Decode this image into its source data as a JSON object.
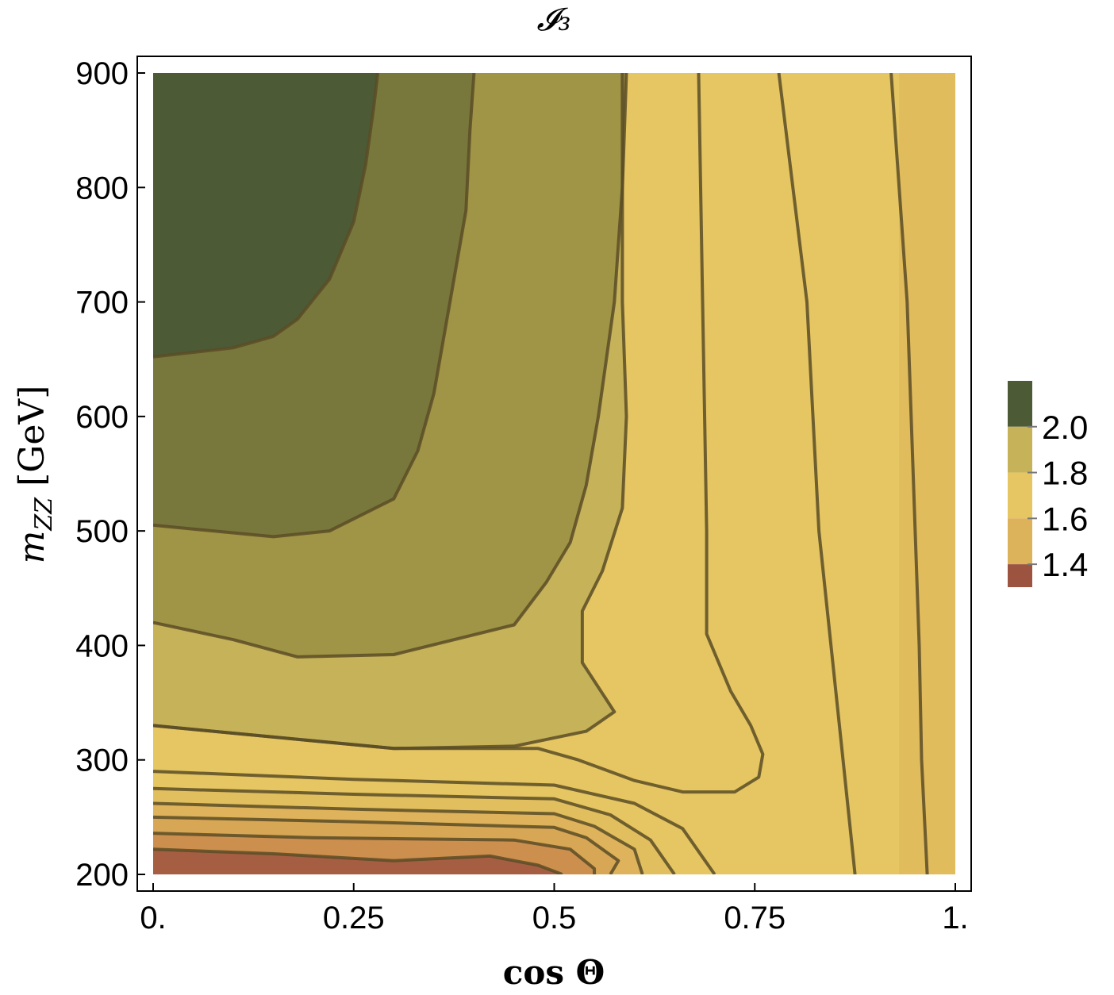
{
  "chart_data": {
    "type": "contour",
    "title": "𝓘₃",
    "xlabel": "cos Θ",
    "ylabel": "m_ZZ [GeV]",
    "ylabel_parts": {
      "symbol": "m",
      "subscript": "ZZ",
      "unit": "[GeV]"
    },
    "xlim": [
      0,
      1
    ],
    "ylim": [
      200,
      900
    ],
    "x_ticks": [
      {
        "value": 0,
        "label": "0."
      },
      {
        "value": 0.25,
        "label": "0.25"
      },
      {
        "value": 0.5,
        "label": "0.5"
      },
      {
        "value": 0.75,
        "label": "0.75"
      },
      {
        "value": 1,
        "label": "1."
      }
    ],
    "y_ticks": [
      {
        "value": 200,
        "label": "200"
      },
      {
        "value": 300,
        "label": "300"
      },
      {
        "value": 400,
        "label": "400"
      },
      {
        "value": 500,
        "label": "500"
      },
      {
        "value": 600,
        "label": "600"
      },
      {
        "value": 700,
        "label": "700"
      },
      {
        "value": 800,
        "label": "800"
      },
      {
        "value": 900,
        "label": "900"
      }
    ],
    "colorbar": {
      "range": [
        1.3,
        2.2
      ],
      "tick_labels": [
        {
          "value": 2.0,
          "label": "2.0"
        },
        {
          "value": 1.8,
          "label": "1.8"
        },
        {
          "value": 1.6,
          "label": "1.6"
        },
        {
          "value": 1.4,
          "label": "1.4"
        }
      ],
      "bands": [
        {
          "from": 2.0,
          "to": 2.2,
          "color": "#4c5a36"
        },
        {
          "from": 1.8,
          "to": 2.0,
          "color": "#c6b259"
        },
        {
          "from": 1.6,
          "to": 1.8,
          "color": "#e5c662"
        },
        {
          "from": 1.4,
          "to": 1.6,
          "color": "#dcb25a"
        },
        {
          "from": 1.3,
          "to": 1.4,
          "color": "#9c5440"
        }
      ]
    },
    "regions": [
      {
        "name": "band-right-edge",
        "color": "#e0bc5c",
        "points": [
          [
            0.93,
            200
          ],
          [
            0.93,
            900
          ],
          [
            1,
            900
          ],
          [
            1,
            200
          ]
        ]
      },
      {
        "name": "band-right-mid",
        "color": "#e5c662",
        "points": [
          [
            0,
            200
          ],
          [
            0,
            330
          ],
          [
            0.35,
            320
          ],
          [
            0.5,
            310
          ],
          [
            0.575,
            290
          ],
          [
            0.66,
            270
          ],
          [
            0.72,
            262
          ],
          [
            0.76,
            250
          ],
          [
            0.735,
            220
          ],
          [
            0.7,
            200
          ]
        ]
      },
      {
        "name": "band-ylw-upper",
        "color": "#c6b259",
        "points": [
          [
            0,
            330
          ],
          [
            0.15,
            320
          ],
          [
            0.3,
            310
          ],
          [
            0.45,
            312
          ],
          [
            0.54,
            325
          ],
          [
            0.575,
            342
          ],
          [
            0.535,
            385
          ],
          [
            0.535,
            430
          ],
          [
            0.56,
            465
          ],
          [
            0.585,
            520
          ],
          [
            0.59,
            600
          ],
          [
            0.585,
            700
          ],
          [
            0.585,
            900
          ],
          [
            0,
            900
          ]
        ]
      },
      {
        "name": "band-olive-light",
        "color": "#a09446",
        "points": [
          [
            0,
            420
          ],
          [
            0.1,
            405
          ],
          [
            0.18,
            390
          ],
          [
            0.3,
            392
          ],
          [
            0.45,
            418
          ],
          [
            0.49,
            455
          ],
          [
            0.52,
            490
          ],
          [
            0.54,
            540
          ],
          [
            0.555,
            600
          ],
          [
            0.575,
            700
          ],
          [
            0.585,
            800
          ],
          [
            0.59,
            900
          ],
          [
            0,
            900
          ]
        ]
      },
      {
        "name": "band-olive-mid",
        "color": "#78783c",
        "points": [
          [
            0,
            505
          ],
          [
            0.15,
            495
          ],
          [
            0.22,
            500
          ],
          [
            0.3,
            528
          ],
          [
            0.33,
            570
          ],
          [
            0.35,
            620
          ],
          [
            0.37,
            700
          ],
          [
            0.39,
            780
          ],
          [
            0.395,
            850
          ],
          [
            0.4,
            900
          ],
          [
            0,
            900
          ]
        ]
      },
      {
        "name": "band-dark-olive",
        "color": "#4c5a36",
        "points": [
          [
            0,
            652
          ],
          [
            0.1,
            660
          ],
          [
            0.15,
            670
          ],
          [
            0.18,
            685
          ],
          [
            0.22,
            720
          ],
          [
            0.25,
            770
          ],
          [
            0.265,
            820
          ],
          [
            0.275,
            870
          ],
          [
            0.28,
            900
          ],
          [
            0,
            900
          ]
        ]
      },
      {
        "name": "band-bottom-1",
        "color": "#e5c662",
        "points": [
          [
            0,
            200
          ],
          [
            0,
            290
          ],
          [
            0.25,
            283
          ],
          [
            0.5,
            278
          ],
          [
            0.6,
            262
          ],
          [
            0.66,
            240
          ],
          [
            0.7,
            200
          ]
        ]
      },
      {
        "name": "band-bottom-2",
        "color": "#e2bf5e",
        "points": [
          [
            0,
            200
          ],
          [
            0,
            275
          ],
          [
            0.25,
            270
          ],
          [
            0.5,
            266
          ],
          [
            0.57,
            252
          ],
          [
            0.62,
            230
          ],
          [
            0.65,
            200
          ]
        ]
      },
      {
        "name": "band-bottom-3",
        "color": "#deb35b",
        "points": [
          [
            0,
            200
          ],
          [
            0,
            262
          ],
          [
            0.25,
            257
          ],
          [
            0.5,
            253
          ],
          [
            0.55,
            242
          ],
          [
            0.6,
            222
          ],
          [
            0.61,
            200
          ]
        ]
      },
      {
        "name": "band-bottom-4",
        "color": "#d8a755",
        "points": [
          [
            0,
            200
          ],
          [
            0,
            250
          ],
          [
            0.25,
            246
          ],
          [
            0.5,
            241
          ],
          [
            0.54,
            232
          ],
          [
            0.58,
            212
          ],
          [
            0.57,
            200
          ]
        ]
      },
      {
        "name": "band-bottom-5",
        "color": "#cc8f4e",
        "points": [
          [
            0,
            200
          ],
          [
            0,
            236
          ],
          [
            0.2,
            232
          ],
          [
            0.45,
            230
          ],
          [
            0.52,
            222
          ],
          [
            0.55,
            205
          ],
          [
            0.55,
            200
          ]
        ]
      },
      {
        "name": "band-bottom-6",
        "color": "#a65e42",
        "points": [
          [
            0,
            200
          ],
          [
            0,
            222
          ],
          [
            0.15,
            218
          ],
          [
            0.3,
            212
          ],
          [
            0.42,
            216
          ],
          [
            0.48,
            208
          ],
          [
            0.51,
            200
          ]
        ]
      }
    ],
    "contours": [
      [
        [
          0,
          652
        ],
        [
          0.1,
          660
        ],
        [
          0.15,
          670
        ],
        [
          0.18,
          685
        ],
        [
          0.22,
          720
        ],
        [
          0.25,
          770
        ],
        [
          0.265,
          820
        ],
        [
          0.275,
          870
        ],
        [
          0.28,
          900
        ]
      ],
      [
        [
          0,
          505
        ],
        [
          0.15,
          495
        ],
        [
          0.22,
          500
        ],
        [
          0.3,
          528
        ],
        [
          0.33,
          570
        ],
        [
          0.35,
          620
        ],
        [
          0.37,
          700
        ],
        [
          0.39,
          780
        ],
        [
          0.395,
          850
        ],
        [
          0.4,
          900
        ]
      ],
      [
        [
          0,
          420
        ],
        [
          0.1,
          405
        ],
        [
          0.18,
          390
        ],
        [
          0.3,
          392
        ],
        [
          0.45,
          418
        ],
        [
          0.49,
          455
        ],
        [
          0.52,
          490
        ],
        [
          0.54,
          540
        ],
        [
          0.555,
          600
        ],
        [
          0.575,
          700
        ],
        [
          0.585,
          800
        ],
        [
          0.59,
          900
        ]
      ],
      [
        [
          0,
          330
        ],
        [
          0.15,
          320
        ],
        [
          0.3,
          310
        ],
        [
          0.45,
          312
        ],
        [
          0.54,
          325
        ],
        [
          0.575,
          342
        ],
        [
          0.535,
          385
        ],
        [
          0.535,
          430
        ],
        [
          0.56,
          465
        ],
        [
          0.585,
          520
        ],
        [
          0.59,
          600
        ],
        [
          0.585,
          700
        ],
        [
          0.585,
          900
        ]
      ],
      [
        [
          0,
          290
        ],
        [
          0.25,
          283
        ],
        [
          0.5,
          278
        ],
        [
          0.6,
          262
        ],
        [
          0.66,
          240
        ],
        [
          0.7,
          200
        ]
      ],
      [
        [
          0,
          275
        ],
        [
          0.25,
          270
        ],
        [
          0.5,
          266
        ],
        [
          0.57,
          252
        ],
        [
          0.62,
          230
        ],
        [
          0.65,
          200
        ]
      ],
      [
        [
          0,
          262
        ],
        [
          0.25,
          257
        ],
        [
          0.5,
          253
        ],
        [
          0.55,
          242
        ],
        [
          0.6,
          222
        ],
        [
          0.61,
          200
        ]
      ],
      [
        [
          0,
          250
        ],
        [
          0.25,
          246
        ],
        [
          0.5,
          241
        ],
        [
          0.54,
          232
        ],
        [
          0.58,
          212
        ],
        [
          0.57,
          200
        ]
      ],
      [
        [
          0,
          236
        ],
        [
          0.2,
          232
        ],
        [
          0.45,
          230
        ],
        [
          0.52,
          222
        ],
        [
          0.55,
          205
        ],
        [
          0.55,
          200
        ]
      ],
      [
        [
          0,
          222
        ],
        [
          0.15,
          218
        ],
        [
          0.3,
          212
        ],
        [
          0.42,
          216
        ],
        [
          0.48,
          208
        ],
        [
          0.51,
          200
        ]
      ],
      [
        [
          0.68,
          900
        ],
        [
          0.685,
          700
        ],
        [
          0.69,
          500
        ],
        [
          0.69,
          410
        ],
        [
          0.72,
          360
        ],
        [
          0.745,
          330
        ],
        [
          0.76,
          305
        ],
        [
          0.755,
          285
        ],
        [
          0.725,
          272
        ],
        [
          0.66,
          272
        ],
        [
          0.6,
          282
        ],
        [
          0.53,
          300
        ],
        [
          0.48,
          310
        ],
        [
          0.3,
          310
        ],
        [
          0,
          330
        ]
      ],
      [
        [
          0.78,
          900
        ],
        [
          0.815,
          700
        ],
        [
          0.83,
          500
        ],
        [
          0.845,
          400
        ],
        [
          0.86,
          300
        ],
        [
          0.875,
          200
        ]
      ],
      [
        [
          0.92,
          900
        ],
        [
          0.94,
          700
        ],
        [
          0.95,
          500
        ],
        [
          0.955,
          400
        ],
        [
          0.958,
          300
        ],
        [
          0.965,
          200
        ]
      ]
    ]
  }
}
